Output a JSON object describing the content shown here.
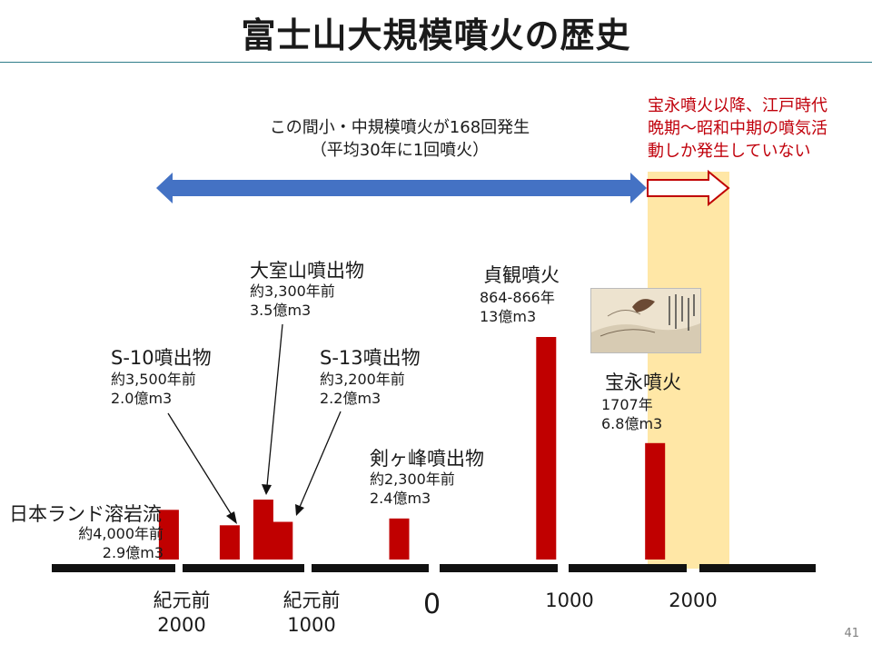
{
  "title": "富士山大規模噴火の歴史",
  "page_number": "41",
  "note_center": {
    "line1": "この間小・中規模噴火が168回発生",
    "line2": "（平均30年に1回噴火）"
  },
  "note_red": {
    "line1": "宝永噴火以降、江戸時代",
    "line2": "晩期～昭和中期の噴気活",
    "line3": "動しか発生していない"
  },
  "colors": {
    "bar": "#c00000",
    "arrow_blue": "#4472c4",
    "highlight": "#ffe7a6",
    "note_red": "#c0000b",
    "axis": "#111111"
  },
  "chart_data": {
    "type": "bar",
    "x_axis": {
      "ticks": [
        {
          "value": -2000,
          "line1": "紀元前",
          "line2": "2000"
        },
        {
          "value": -1000,
          "line1": "紀元前",
          "line2": "1000"
        },
        {
          "value": 0,
          "line1": "0",
          "line2": ""
        },
        {
          "value": 1000,
          "line1": "1000",
          "line2": ""
        },
        {
          "value": 2000,
          "line1": "2000",
          "line2": ""
        }
      ]
    },
    "y_unit": "億m3",
    "events": [
      {
        "name": "日本ランド溶岩流",
        "age": "約4,000年前",
        "volume_label": "2.9億m3",
        "year": -2050,
        "volume": 2.9
      },
      {
        "name": "S-10噴出物",
        "age": "約3,500年前",
        "volume_label": "2.0億m3",
        "year": -1580,
        "volume": 2.0
      },
      {
        "name": "大室山噴出物",
        "age": "約3,300年前",
        "volume_label": "3.5億m3",
        "year": -1320,
        "volume": 3.5
      },
      {
        "name": "S-13噴出物",
        "age": "約3,200年前",
        "volume_label": "2.2億m3",
        "year": -1170,
        "volume": 2.2
      },
      {
        "name": "剣ヶ峰噴出物",
        "age": "約2,300年前",
        "volume_label": "2.4億m3",
        "year": -270,
        "volume": 2.4
      },
      {
        "name": "貞観噴火",
        "age": "864-866年",
        "volume_label": "13億m3",
        "year": 865,
        "volume": 13
      },
      {
        "name": "宝永噴火",
        "age": "1707年",
        "volume_label": "6.8億m3",
        "year": 1707,
        "volume": 6.8
      }
    ]
  }
}
